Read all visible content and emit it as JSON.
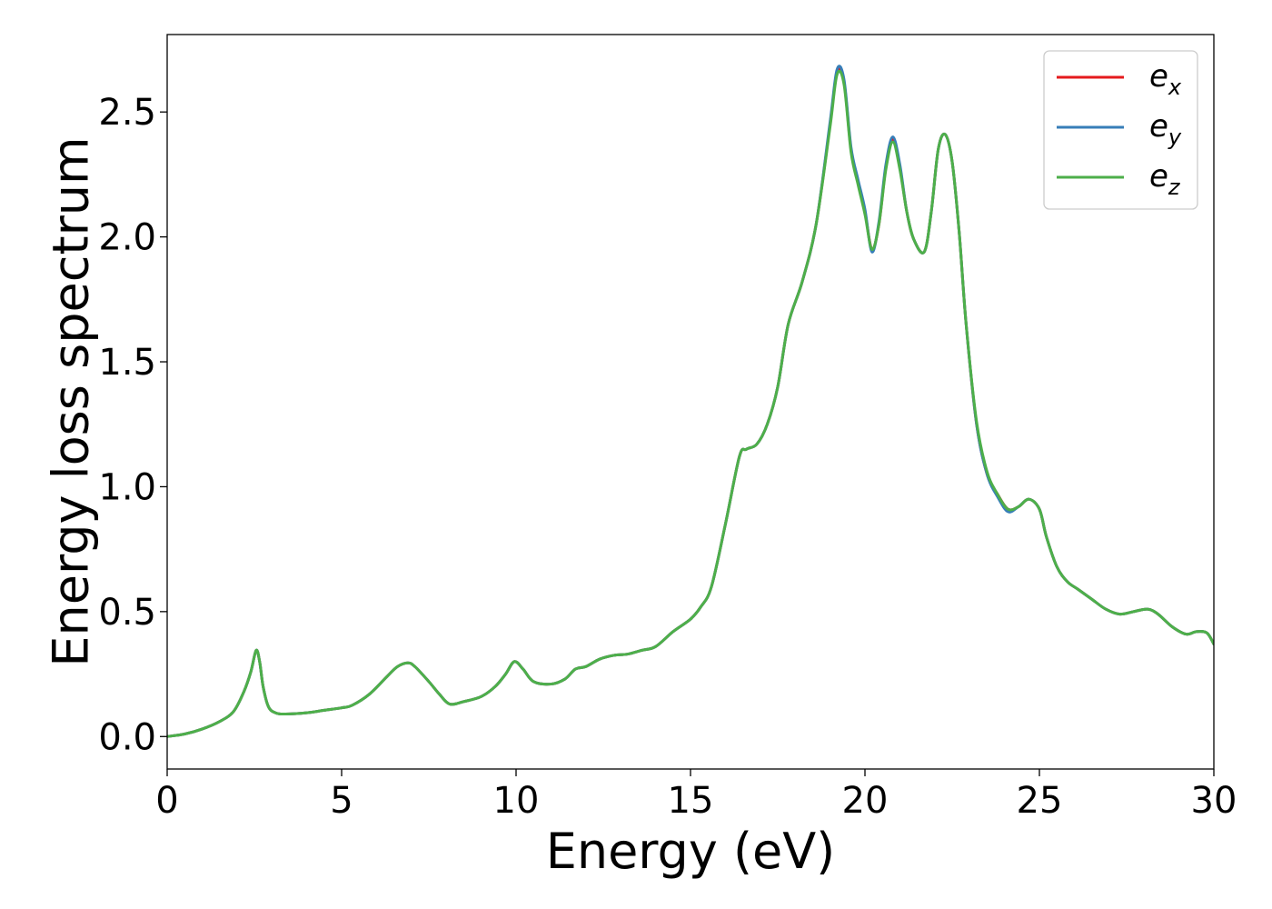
{
  "chart_data": {
    "type": "line",
    "xlabel": "Energy (eV)",
    "ylabel": "Energy loss spectrum",
    "xlim": [
      0,
      30
    ],
    "ylim": [
      -0.13,
      2.81
    ],
    "xticks": [
      0,
      5,
      10,
      15,
      20,
      25,
      30
    ],
    "yticks": [
      0.0,
      0.5,
      1.0,
      1.5,
      2.0,
      2.5
    ],
    "xtick_labels": [
      "0",
      "5",
      "10",
      "15",
      "20",
      "25",
      "30"
    ],
    "ytick_labels": [
      "0.0",
      "0.5",
      "1.0",
      "1.5",
      "2.0",
      "2.5"
    ],
    "grid": false,
    "legend_position": "top-right",
    "series": [
      {
        "name": "e_x",
        "legend_base": "e",
        "legend_sub": "x",
        "color": "#e41a1c",
        "x": [
          0,
          0.5,
          1.0,
          1.5,
          1.9,
          2.2,
          2.4,
          2.55,
          2.65,
          2.75,
          2.9,
          3.1,
          3.4,
          4.0,
          4.5,
          5.0,
          5.3,
          5.8,
          6.3,
          6.6,
          6.9,
          7.1,
          7.5,
          7.8,
          8.1,
          8.5,
          9.0,
          9.4,
          9.7,
          9.95,
          10.2,
          10.5,
          11.0,
          11.4,
          11.7,
          12.0,
          12.4,
          12.8,
          13.2,
          13.6,
          14.0,
          14.5,
          15.0,
          15.3,
          15.6,
          16.0,
          16.4,
          16.6,
          16.9,
          17.2,
          17.5,
          17.8,
          18.2,
          18.6,
          19.0,
          19.2,
          19.4,
          19.6,
          19.8,
          20.0,
          20.2,
          20.4,
          20.6,
          20.8,
          21.0,
          21.2,
          21.4,
          21.7,
          21.9,
          22.1,
          22.3,
          22.5,
          22.7,
          22.9,
          23.2,
          23.5,
          23.8,
          24.1,
          24.4,
          24.7,
          25.0,
          25.2,
          25.5,
          25.8,
          26.1,
          26.5,
          26.9,
          27.3,
          27.7,
          28.1,
          28.4,
          28.8,
          29.2,
          29.5,
          29.8,
          30.0
        ],
        "y": [
          0.0,
          0.01,
          0.03,
          0.06,
          0.1,
          0.18,
          0.26,
          0.345,
          0.3,
          0.2,
          0.12,
          0.095,
          0.09,
          0.095,
          0.105,
          0.115,
          0.125,
          0.17,
          0.24,
          0.28,
          0.295,
          0.28,
          0.22,
          0.17,
          0.13,
          0.14,
          0.16,
          0.2,
          0.25,
          0.3,
          0.27,
          0.22,
          0.21,
          0.23,
          0.27,
          0.28,
          0.31,
          0.325,
          0.33,
          0.345,
          0.36,
          0.42,
          0.47,
          0.52,
          0.6,
          0.85,
          1.12,
          1.15,
          1.17,
          1.25,
          1.4,
          1.65,
          1.82,
          2.05,
          2.45,
          2.66,
          2.62,
          2.35,
          2.22,
          2.1,
          1.95,
          2.05,
          2.28,
          2.39,
          2.28,
          2.1,
          1.99,
          1.94,
          2.1,
          2.35,
          2.41,
          2.3,
          2.02,
          1.65,
          1.25,
          1.05,
          0.97,
          0.91,
          0.92,
          0.95,
          0.91,
          0.8,
          0.68,
          0.62,
          0.59,
          0.55,
          0.51,
          0.49,
          0.5,
          0.51,
          0.49,
          0.44,
          0.41,
          0.42,
          0.415,
          0.37
        ]
      },
      {
        "name": "e_y",
        "legend_base": "e",
        "legend_sub": "y",
        "color": "#377eb8",
        "x": [
          0,
          0.5,
          1.0,
          1.5,
          1.9,
          2.2,
          2.4,
          2.55,
          2.65,
          2.75,
          2.9,
          3.1,
          3.4,
          4.0,
          4.5,
          5.0,
          5.3,
          5.8,
          6.3,
          6.6,
          6.9,
          7.1,
          7.5,
          7.8,
          8.1,
          8.5,
          9.0,
          9.4,
          9.7,
          9.95,
          10.2,
          10.5,
          11.0,
          11.4,
          11.7,
          12.0,
          12.4,
          12.8,
          13.2,
          13.6,
          14.0,
          14.5,
          15.0,
          15.3,
          15.6,
          16.0,
          16.4,
          16.6,
          16.9,
          17.2,
          17.5,
          17.8,
          18.2,
          18.6,
          19.0,
          19.2,
          19.4,
          19.6,
          19.8,
          20.0,
          20.2,
          20.4,
          20.6,
          20.8,
          21.0,
          21.2,
          21.4,
          21.7,
          21.9,
          22.1,
          22.3,
          22.5,
          22.7,
          22.9,
          23.2,
          23.5,
          23.8,
          24.1,
          24.4,
          24.7,
          25.0,
          25.2,
          25.5,
          25.8,
          26.1,
          26.5,
          26.9,
          27.3,
          27.7,
          28.1,
          28.4,
          28.8,
          29.2,
          29.5,
          29.8,
          30.0
        ],
        "y": [
          0.0,
          0.01,
          0.03,
          0.06,
          0.1,
          0.18,
          0.26,
          0.345,
          0.3,
          0.2,
          0.12,
          0.095,
          0.09,
          0.095,
          0.105,
          0.115,
          0.125,
          0.17,
          0.24,
          0.28,
          0.295,
          0.28,
          0.22,
          0.17,
          0.13,
          0.14,
          0.16,
          0.2,
          0.25,
          0.3,
          0.27,
          0.22,
          0.21,
          0.23,
          0.27,
          0.28,
          0.31,
          0.325,
          0.33,
          0.345,
          0.36,
          0.42,
          0.47,
          0.52,
          0.6,
          0.85,
          1.12,
          1.15,
          1.17,
          1.25,
          1.4,
          1.65,
          1.82,
          2.05,
          2.46,
          2.67,
          2.63,
          2.36,
          2.23,
          2.11,
          1.94,
          2.06,
          2.29,
          2.4,
          2.29,
          2.1,
          1.99,
          1.94,
          2.1,
          2.35,
          2.41,
          2.3,
          2.02,
          1.65,
          1.25,
          1.05,
          0.96,
          0.9,
          0.92,
          0.95,
          0.91,
          0.8,
          0.68,
          0.62,
          0.59,
          0.55,
          0.51,
          0.49,
          0.5,
          0.51,
          0.49,
          0.44,
          0.41,
          0.42,
          0.415,
          0.37
        ]
      },
      {
        "name": "e_z",
        "legend_base": "e",
        "legend_sub": "z",
        "color": "#4daf4a",
        "x": [
          0,
          0.5,
          1.0,
          1.5,
          1.9,
          2.2,
          2.4,
          2.55,
          2.65,
          2.75,
          2.9,
          3.1,
          3.4,
          4.0,
          4.5,
          5.0,
          5.3,
          5.8,
          6.3,
          6.6,
          6.9,
          7.1,
          7.5,
          7.8,
          8.1,
          8.5,
          9.0,
          9.4,
          9.7,
          9.95,
          10.2,
          10.5,
          11.0,
          11.4,
          11.7,
          12.0,
          12.4,
          12.8,
          13.2,
          13.6,
          14.0,
          14.5,
          15.0,
          15.3,
          15.6,
          16.0,
          16.4,
          16.6,
          16.9,
          17.2,
          17.5,
          17.8,
          18.2,
          18.6,
          19.0,
          19.2,
          19.4,
          19.6,
          19.8,
          20.0,
          20.2,
          20.4,
          20.6,
          20.8,
          21.0,
          21.2,
          21.4,
          21.7,
          21.9,
          22.1,
          22.3,
          22.5,
          22.7,
          22.9,
          23.2,
          23.5,
          23.8,
          24.1,
          24.4,
          24.7,
          25.0,
          25.2,
          25.5,
          25.8,
          26.1,
          26.5,
          26.9,
          27.3,
          27.7,
          28.1,
          28.4,
          28.8,
          29.2,
          29.5,
          29.8,
          30.0
        ],
        "y": [
          0.0,
          0.01,
          0.03,
          0.06,
          0.1,
          0.18,
          0.26,
          0.345,
          0.3,
          0.2,
          0.12,
          0.095,
          0.09,
          0.095,
          0.105,
          0.115,
          0.125,
          0.17,
          0.24,
          0.28,
          0.295,
          0.28,
          0.22,
          0.17,
          0.13,
          0.14,
          0.16,
          0.2,
          0.25,
          0.3,
          0.27,
          0.22,
          0.21,
          0.23,
          0.27,
          0.28,
          0.31,
          0.325,
          0.33,
          0.345,
          0.36,
          0.42,
          0.47,
          0.52,
          0.6,
          0.85,
          1.12,
          1.15,
          1.17,
          1.25,
          1.4,
          1.65,
          1.82,
          2.05,
          2.44,
          2.65,
          2.61,
          2.34,
          2.21,
          2.09,
          1.95,
          2.05,
          2.27,
          2.38,
          2.27,
          2.1,
          1.99,
          1.94,
          2.1,
          2.35,
          2.41,
          2.3,
          2.02,
          1.65,
          1.26,
          1.06,
          0.97,
          0.91,
          0.92,
          0.95,
          0.91,
          0.8,
          0.68,
          0.62,
          0.59,
          0.55,
          0.51,
          0.49,
          0.5,
          0.51,
          0.49,
          0.44,
          0.41,
          0.42,
          0.415,
          0.37
        ]
      }
    ]
  }
}
